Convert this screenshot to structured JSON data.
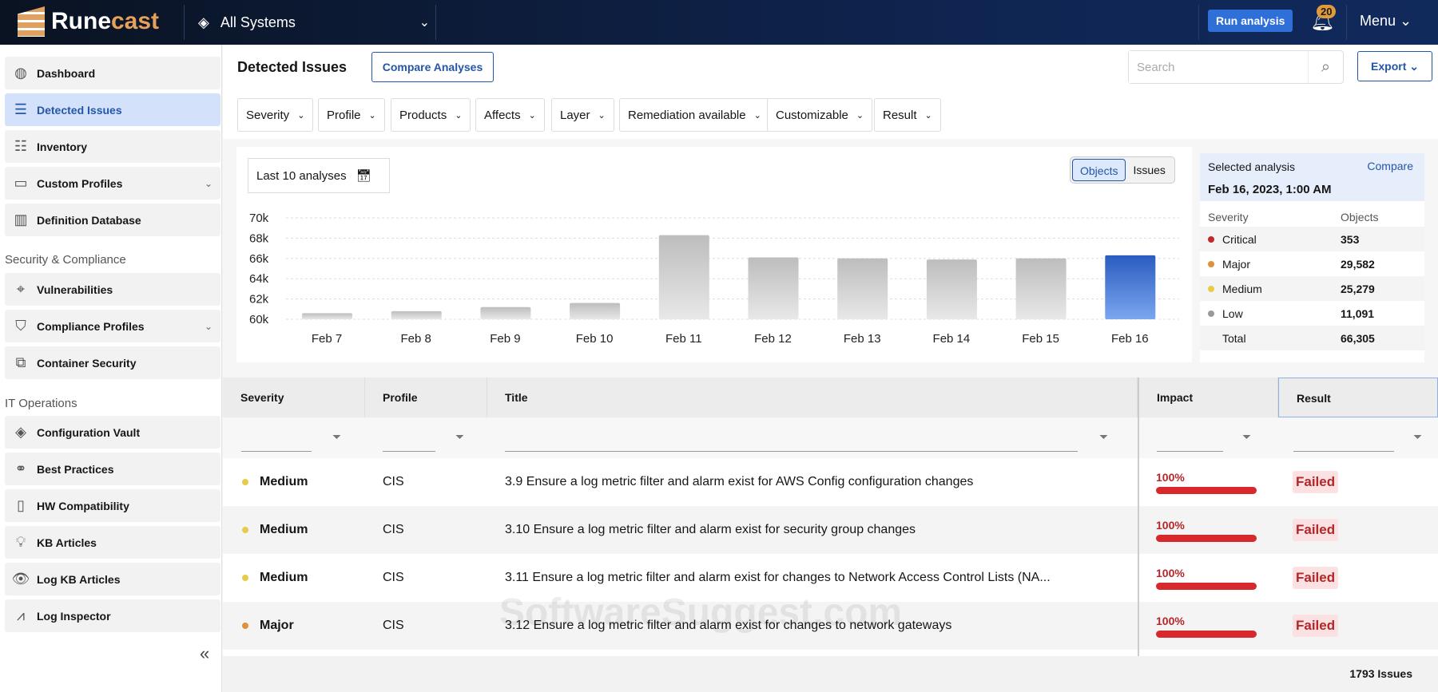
{
  "header": {
    "logo_a": "Rune",
    "logo_b": "cast",
    "systems": "All Systems",
    "run_analysis": "Run analysis",
    "notifications": "20",
    "menu": "Menu"
  },
  "sidebar": {
    "items": [
      {
        "label": "Dashboard",
        "icon": "dashboard-icon"
      },
      {
        "label": "Detected Issues",
        "icon": "list-icon",
        "active": true
      },
      {
        "label": "Inventory",
        "icon": "inventory-icon"
      },
      {
        "label": "Custom Profiles",
        "icon": "folder-icon",
        "expandable": true
      },
      {
        "label": "Definition Database",
        "icon": "books-icon"
      }
    ],
    "section1": "Security & Compliance",
    "items2": [
      {
        "label": "Vulnerabilities"
      },
      {
        "label": "Compliance Profiles",
        "expandable": true
      },
      {
        "label": "Container Security"
      }
    ],
    "section2": "IT Operations",
    "items3": [
      {
        "label": "Configuration Vault"
      },
      {
        "label": "Best Practices"
      },
      {
        "label": "HW Compatibility"
      },
      {
        "label": "KB Articles"
      },
      {
        "label": "Log KB Articles"
      },
      {
        "label": "Log Inspector"
      }
    ]
  },
  "page": {
    "title": "Detected Issues",
    "compare": "Compare Analyses",
    "search_placeholder": "Search",
    "export": "Export"
  },
  "filters": [
    "Severity",
    "Profile",
    "Products",
    "Affects",
    "Layer",
    "Remediation available",
    "Customizable",
    "Result"
  ],
  "chart_panel": {
    "range": "Last 10 analyses",
    "toggle": [
      "Objects",
      "Issues"
    ],
    "toggle_active": "Objects"
  },
  "chart_data": {
    "type": "bar",
    "categories": [
      "Feb 7",
      "Feb 8",
      "Feb 9",
      "Feb 10",
      "Feb 11",
      "Feb 12",
      "Feb 13",
      "Feb 14",
      "Feb 15",
      "Feb 16"
    ],
    "values": [
      60600,
      60800,
      61200,
      61600,
      68300,
      66100,
      66000,
      65900,
      66000,
      66305
    ],
    "ylim": [
      60000,
      70000
    ],
    "yticks": [
      "60k",
      "62k",
      "64k",
      "66k",
      "68k",
      "70k"
    ],
    "grid": true,
    "selected": "Feb 16",
    "bar_color": "#cfcfcf",
    "selected_color": "#2f66c8"
  },
  "summary": {
    "label": "Selected analysis",
    "compare": "Compare",
    "date": "Feb 16, 2023, 1:00 AM",
    "col1": "Severity",
    "col2": "Objects",
    "rows": [
      {
        "sev": "Critical",
        "val": "353",
        "color": "#c0282c"
      },
      {
        "sev": "Major",
        "val": "29,582",
        "color": "#e0913c"
      },
      {
        "sev": "Medium",
        "val": "25,279",
        "color": "#e6cc48"
      },
      {
        "sev": "Low",
        "val": "11,091",
        "color": "#999999"
      }
    ],
    "total_label": "Total",
    "total": "66,305"
  },
  "table": {
    "headers": [
      "Severity",
      "Profile",
      "Title",
      "Impact",
      "Result"
    ],
    "rows": [
      {
        "severity": "Medium",
        "color": "#e6cc48",
        "profile": "CIS",
        "title": "3.9 Ensure a log metric filter and alarm exist for AWS Config configuration changes",
        "impact": "100%",
        "result": "Failed"
      },
      {
        "severity": "Medium",
        "color": "#e6cc48",
        "profile": "CIS",
        "title": "3.10 Ensure a log metric filter and alarm exist for security group changes",
        "impact": "100%",
        "result": "Failed"
      },
      {
        "severity": "Medium",
        "color": "#e6cc48",
        "profile": "CIS",
        "title": "3.11 Ensure a log metric filter and alarm exist for changes to Network Access Control Lists (NA...",
        "impact": "100%",
        "result": "Failed"
      },
      {
        "severity": "Major",
        "color": "#e0913c",
        "profile": "CIS",
        "title": "3.12 Ensure a log metric filter and alarm exist for changes to network gateways",
        "impact": "100%",
        "result": "Failed"
      }
    ]
  },
  "footer": {
    "count": "1793 Issues"
  },
  "watermark": "SoftwareSuggest.com"
}
